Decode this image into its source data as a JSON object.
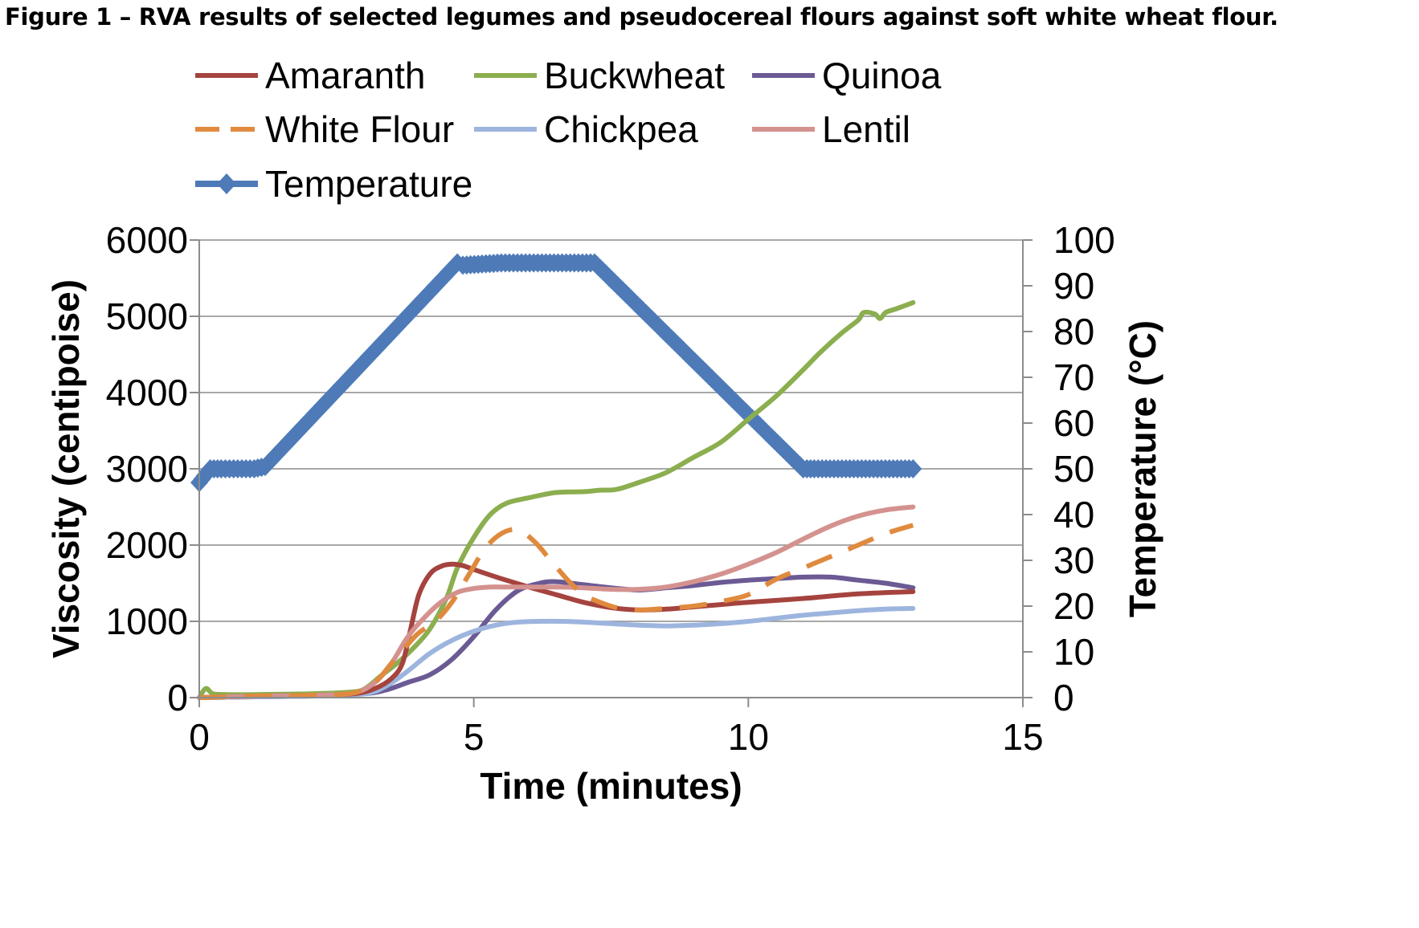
{
  "figure_title": "Figure 1 – RVA results of selected legumes and pseudocereal flours against soft white wheat flour.",
  "chart_data": {
    "type": "line",
    "title": "Figure 1 – RVA results of selected legumes and pseudocereal flours against soft white wheat flour.",
    "xlabel": "Time (minutes)",
    "ylabel": "Viscosity (centipoise)",
    "y2label": "Temperature (°C)",
    "xlim": [
      0,
      15
    ],
    "ylim": [
      0,
      6000
    ],
    "y2lim": [
      0,
      100
    ],
    "x_ticks": [
      0,
      5,
      10,
      15
    ],
    "y_ticks": [
      0,
      1000,
      2000,
      3000,
      4000,
      5000,
      6000
    ],
    "y2_ticks": [
      0,
      10,
      20,
      30,
      40,
      50,
      60,
      70,
      80,
      90,
      100
    ],
    "grid": "horizontal",
    "legend_position": "top",
    "series": [
      {
        "name": "Amaranth",
        "color": "#A5433E",
        "dash": "solid",
        "axis": "left",
        "x": [
          0,
          0.5,
          1,
          2,
          2.8,
          3.2,
          3.5,
          3.7,
          3.85,
          4.0,
          4.2,
          4.4,
          4.6,
          4.8,
          5.0,
          5.5,
          6,
          6.5,
          7,
          7.5,
          8,
          8.5,
          9,
          9.5,
          10,
          11,
          12,
          13
        ],
        "y": [
          0,
          10,
          20,
          30,
          50,
          120,
          250,
          450,
          900,
          1350,
          1620,
          1720,
          1750,
          1730,
          1680,
          1560,
          1450,
          1350,
          1250,
          1180,
          1150,
          1160,
          1190,
          1220,
          1250,
          1300,
          1360,
          1390
        ]
      },
      {
        "name": "Buckwheat",
        "color": "#8BAE4F",
        "dash": "solid",
        "axis": "left",
        "x": [
          0,
          0.12,
          0.25,
          0.5,
          1,
          2,
          2.7,
          3.0,
          3.3,
          3.6,
          3.9,
          4.2,
          4.5,
          4.7,
          5.0,
          5.3,
          5.6,
          6.0,
          6.5,
          7.0,
          7.3,
          7.6,
          8.0,
          8.5,
          9.0,
          9.5,
          10.0,
          10.5,
          11.0,
          11.3,
          11.7,
          12.0,
          12.1,
          12.3,
          12.4,
          12.5,
          12.7,
          13.0
        ],
        "y": [
          0,
          120,
          50,
          40,
          40,
          50,
          70,
          110,
          280,
          450,
          650,
          900,
          1300,
          1700,
          2100,
          2400,
          2550,
          2620,
          2690,
          2700,
          2720,
          2730,
          2820,
          2950,
          3150,
          3350,
          3650,
          3950,
          4300,
          4520,
          4780,
          4950,
          5050,
          5030,
          4970,
          5050,
          5100,
          5180
        ]
      },
      {
        "name": "Quinoa",
        "color": "#6B5A94",
        "dash": "solid",
        "axis": "left",
        "x": [
          0,
          0.5,
          1,
          2,
          3.0,
          3.4,
          3.8,
          4.2,
          4.6,
          5.0,
          5.4,
          5.8,
          6.2,
          6.5,
          7.0,
          7.5,
          8.0,
          8.5,
          9.0,
          9.5,
          10.0,
          10.5,
          11.0,
          11.5,
          12.0,
          12.5,
          13.0
        ],
        "y": [
          0,
          5,
          10,
          20,
          50,
          100,
          200,
          300,
          500,
          800,
          1150,
          1400,
          1500,
          1520,
          1480,
          1440,
          1410,
          1440,
          1470,
          1510,
          1540,
          1560,
          1580,
          1580,
          1540,
          1500,
          1440
        ]
      },
      {
        "name": "White Flour",
        "color": "#E08A3E",
        "dash": "dashed",
        "axis": "left",
        "x": [
          0,
          0.5,
          1,
          2,
          2.8,
          3.2,
          3.5,
          3.8,
          4.0,
          4.3,
          4.6,
          4.9,
          5.2,
          5.5,
          5.8,
          6.1,
          6.4,
          6.7,
          7.0,
          7.3,
          7.6,
          8.0,
          8.5,
          9.0,
          9.5,
          10.0,
          10.5,
          11.0,
          11.5,
          12.0,
          12.5,
          13.0
        ],
        "y": [
          0,
          10,
          20,
          30,
          60,
          200,
          450,
          700,
          850,
          1000,
          1250,
          1600,
          1950,
          2150,
          2200,
          2050,
          1800,
          1550,
          1350,
          1250,
          1180,
          1150,
          1170,
          1200,
          1260,
          1350,
          1550,
          1700,
          1850,
          2000,
          2150,
          2260
        ]
      },
      {
        "name": "Chickpea",
        "color": "#9DB5DE",
        "dash": "solid",
        "axis": "left",
        "x": [
          0,
          0.5,
          1,
          2,
          3.0,
          3.4,
          3.8,
          4.2,
          4.6,
          5.0,
          5.4,
          5.8,
          6.2,
          6.6,
          7.0,
          7.5,
          8.0,
          8.5,
          9.0,
          9.5,
          10.0,
          10.5,
          11.0,
          11.5,
          12.0,
          12.5,
          13.0
        ],
        "y": [
          0,
          5,
          10,
          20,
          50,
          150,
          350,
          580,
          750,
          870,
          950,
          990,
          1000,
          1000,
          990,
          970,
          950,
          940,
          950,
          970,
          1000,
          1040,
          1080,
          1110,
          1140,
          1160,
          1170
        ]
      },
      {
        "name": "Lentil",
        "color": "#D4928F",
        "dash": "solid",
        "axis": "left",
        "x": [
          0,
          0.5,
          1,
          2,
          2.8,
          3.2,
          3.5,
          3.8,
          4.1,
          4.4,
          4.7,
          5.0,
          5.3,
          5.6,
          6.0,
          6.5,
          7.0,
          7.5,
          8.0,
          8.5,
          9.0,
          9.5,
          10.0,
          10.5,
          11.0,
          11.5,
          12.0,
          12.5,
          13.0
        ],
        "y": [
          0,
          10,
          20,
          30,
          60,
          200,
          450,
          800,
          1050,
          1250,
          1380,
          1430,
          1450,
          1450,
          1450,
          1450,
          1440,
          1420,
          1420,
          1450,
          1520,
          1620,
          1750,
          1900,
          2080,
          2250,
          2380,
          2460,
          2500
        ]
      },
      {
        "name": "Temperature",
        "color": "#4E7BB8",
        "dash": "solid",
        "axis": "right",
        "marker": "diamond",
        "x": [
          0,
          0.2,
          0.4,
          1.0,
          1.2,
          4.7,
          4.8,
          5.5,
          7.2,
          11.0,
          11.2,
          13.0
        ],
        "y": [
          47,
          50,
          50,
          50,
          50.5,
          95,
          94.5,
          95,
          95,
          50,
          50,
          50
        ]
      }
    ]
  }
}
